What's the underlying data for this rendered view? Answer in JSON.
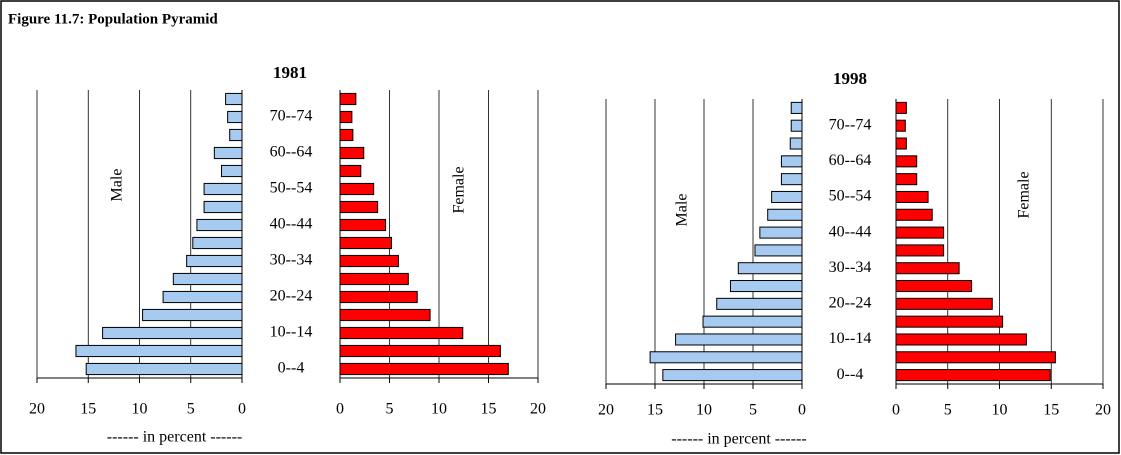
{
  "title": "Figure 11.7: Population Pyramid",
  "chart_data": [
    {
      "type": "pyramid",
      "title": "1981",
      "categories": [
        "0--4",
        null,
        "10--14",
        null,
        "20--24",
        null,
        "30--34",
        null,
        "40--44",
        null,
        "50--54",
        null,
        "60--64",
        null,
        "70--74",
        null
      ],
      "series": [
        {
          "name": "Male",
          "color": "#a6caf0",
          "values": [
            15.2,
            16.2,
            13.6,
            9.7,
            7.7,
            6.7,
            5.4,
            4.8,
            4.4,
            3.7,
            3.7,
            2.0,
            2.7,
            1.2,
            1.4,
            1.6
          ]
        },
        {
          "name": "Female",
          "color": "#ff0000",
          "values": [
            17.0,
            16.2,
            12.4,
            9.1,
            7.8,
            6.9,
            5.9,
            5.2,
            4.6,
            3.8,
            3.4,
            2.1,
            2.4,
            1.3,
            1.2,
            1.6
          ]
        }
      ],
      "xlim": [
        0,
        20
      ],
      "xticks": [
        0,
        5,
        10,
        15,
        20
      ],
      "xlabel": "------ in percent ------",
      "grid": true
    },
    {
      "type": "pyramid",
      "title": "1998",
      "categories": [
        "0--4",
        null,
        "10--14",
        null,
        "20--24",
        null,
        "30--34",
        null,
        "40--44",
        null,
        "50--54",
        null,
        "60--64",
        null,
        "70--74",
        null
      ],
      "series": [
        {
          "name": "Male",
          "color": "#a6caf0",
          "values": [
            14.2,
            15.5,
            12.9,
            10.1,
            8.7,
            7.3,
            6.5,
            4.8,
            4.3,
            3.5,
            3.1,
            2.1,
            2.1,
            1.2,
            1.1,
            1.1
          ]
        },
        {
          "name": "Female",
          "color": "#ff0000",
          "values": [
            14.9,
            15.4,
            12.6,
            10.3,
            9.3,
            7.3,
            6.1,
            4.6,
            4.6,
            3.5,
            3.1,
            2.0,
            2.0,
            1.0,
            0.9,
            1.0
          ]
        }
      ],
      "xlim": [
        0,
        20
      ],
      "xticks": [
        0,
        5,
        10,
        15,
        20
      ],
      "xlabel": "------ in percent ------",
      "grid": true
    }
  ]
}
